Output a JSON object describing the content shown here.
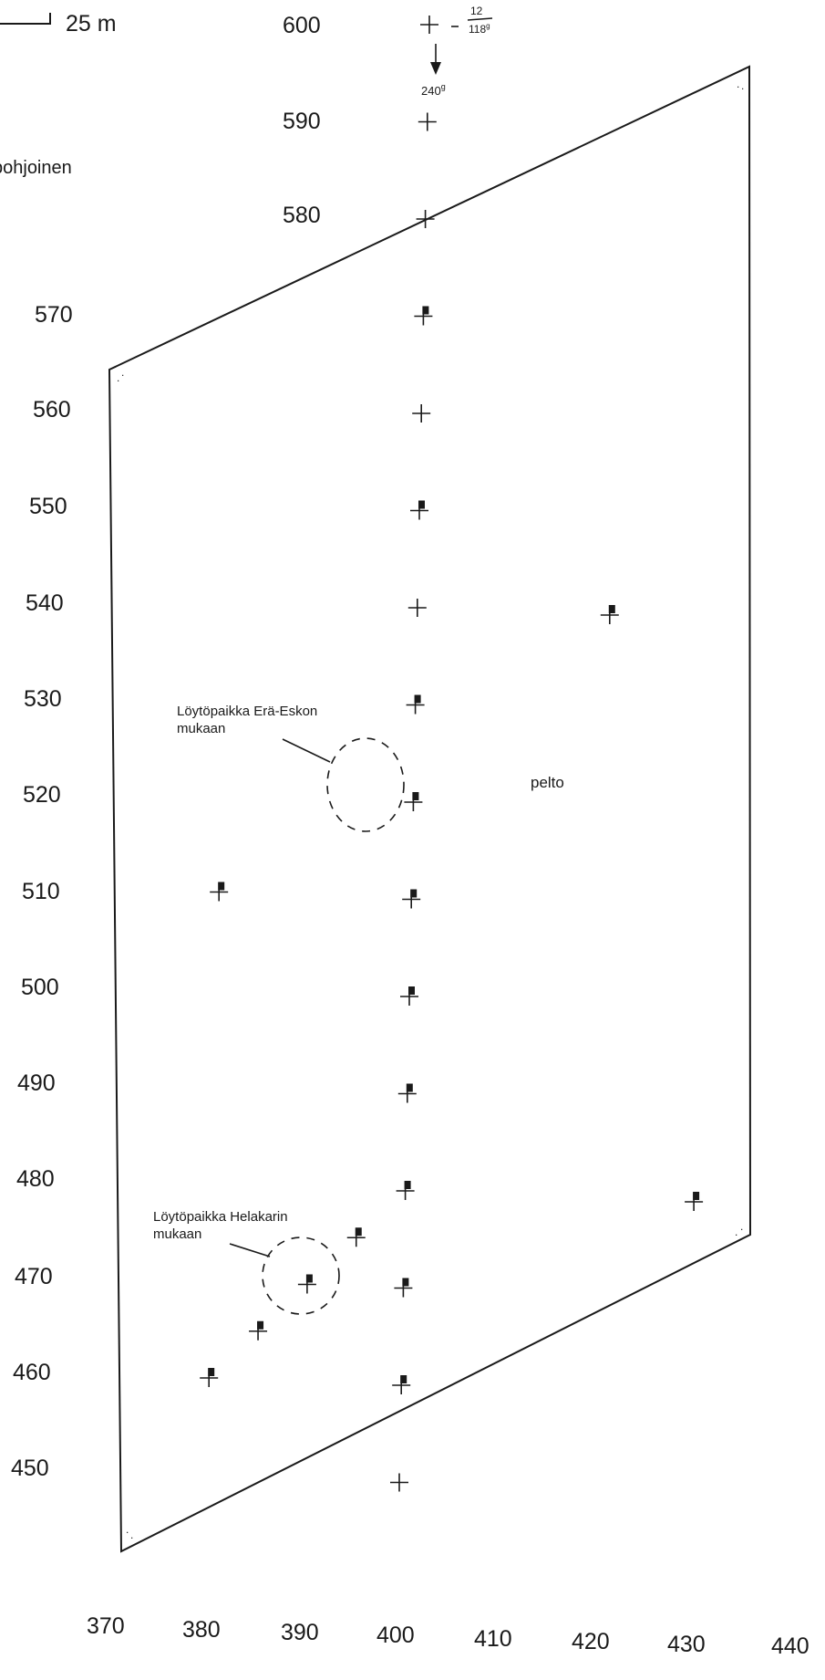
{
  "scale": {
    "label": "25 m"
  },
  "north": {
    "label": "pohjoinen"
  },
  "bearing": {
    "label": "240",
    "unit": "g",
    "numerator": "12",
    "denominator": "118",
    "denominator_unit": "g"
  },
  "field_label": "pelto",
  "annotations": [
    {
      "line1": "Löytöpaikka Erä-Eskon",
      "line2": "mukaan"
    },
    {
      "line1": "Löytöpaikka Helakarin",
      "line2": "mukaan"
    }
  ],
  "y_grid": [
    "600",
    "590",
    "580",
    "570",
    "560",
    "550",
    "540",
    "530",
    "520",
    "510",
    "500",
    "490",
    "480",
    "470",
    "460",
    "450"
  ],
  "x_grid": [
    "370",
    "380",
    "390",
    "400",
    "410",
    "420",
    "430",
    "440"
  ],
  "crosses": [
    {
      "x": 400,
      "y": 600,
      "type": "plain"
    },
    {
      "x": 400,
      "y": 590,
      "type": "plain"
    },
    {
      "x": 400,
      "y": 580,
      "type": "plain"
    },
    {
      "x": 400,
      "y": 570,
      "type": "marked"
    },
    {
      "x": 400,
      "y": 560,
      "type": "plain"
    },
    {
      "x": 400,
      "y": 550,
      "type": "marked"
    },
    {
      "x": 400,
      "y": 540,
      "type": "plain"
    },
    {
      "x": 420,
      "y": 540,
      "type": "marked"
    },
    {
      "x": 400,
      "y": 530,
      "type": "marked"
    },
    {
      "x": 400,
      "y": 520,
      "type": "marked"
    },
    {
      "x": 380,
      "y": 510,
      "type": "marked"
    },
    {
      "x": 400,
      "y": 510,
      "type": "marked"
    },
    {
      "x": 400,
      "y": 500,
      "type": "marked"
    },
    {
      "x": 400,
      "y": 490,
      "type": "marked"
    },
    {
      "x": 400,
      "y": 480,
      "type": "marked"
    },
    {
      "x": 430,
      "y": 480,
      "type": "marked"
    },
    {
      "x": 395,
      "y": 475,
      "type": "marked"
    },
    {
      "x": 390,
      "y": 470,
      "type": "marked"
    },
    {
      "x": 400,
      "y": 470,
      "type": "marked"
    },
    {
      "x": 385,
      "y": 465,
      "type": "marked"
    },
    {
      "x": 380,
      "y": 460,
      "type": "marked"
    },
    {
      "x": 400,
      "y": 460,
      "type": "marked"
    },
    {
      "x": 400,
      "y": 450,
      "type": "plain"
    }
  ]
}
